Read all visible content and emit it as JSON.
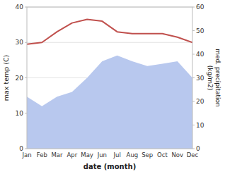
{
  "chart_data": {
    "type": "line",
    "xlabel": "date (month)",
    "ylabel": "max temp (C)",
    "y2label": "med. precipitation\n(kg/m2)",
    "categories": [
      "Jan",
      "Feb",
      "Mar",
      "Apr",
      "May",
      "Jun",
      "Jul",
      "Aug",
      "Sep",
      "Oct",
      "Nov",
      "Dec"
    ],
    "series": [
      {
        "type": "area",
        "axis": "y2",
        "color": "#b8c8ee",
        "values": [
          22.0,
          18.0,
          22.0,
          24.0,
          30.0,
          37.0,
          39.5,
          37.0,
          35.0,
          36.0,
          37.0,
          30.0
        ]
      },
      {
        "type": "line",
        "color": "#c0504d",
        "values": [
          29.5,
          30.0,
          33.0,
          35.5,
          36.5,
          36.0,
          33.0,
          32.5,
          32.5,
          32.5,
          31.5,
          30.0
        ]
      }
    ],
    "ylim": [
      0,
      40
    ],
    "yticks": [
      0,
      10,
      20,
      30,
      40
    ],
    "y2lim": [
      0,
      60
    ],
    "y2ticks": [
      0,
      10,
      20,
      30,
      40,
      50,
      60
    ],
    "grid": true
  }
}
